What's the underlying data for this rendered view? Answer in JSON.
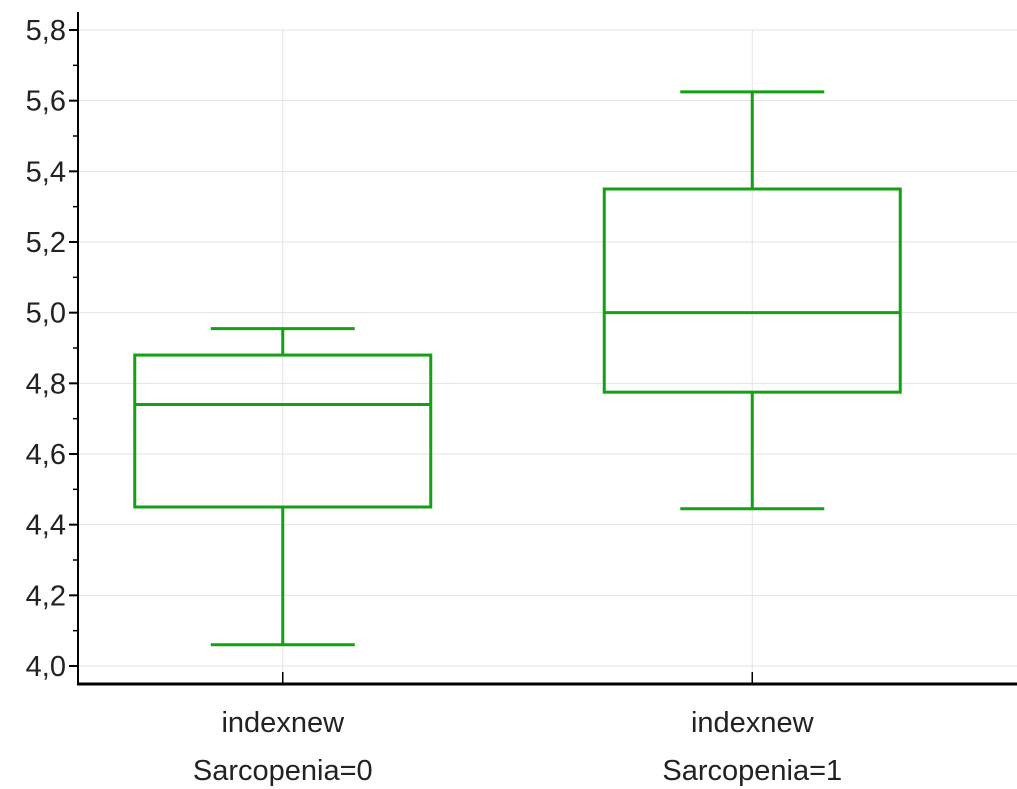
{
  "chart_data": {
    "type": "boxplot",
    "title": "",
    "xlabel": "",
    "ylabel": "",
    "ylim": [
      4.0,
      5.8
    ],
    "yticks": [
      4.0,
      4.2,
      4.4,
      4.6,
      4.8,
      5.0,
      5.2,
      5.4,
      5.6,
      5.8
    ],
    "ytick_labels": [
      "4,0",
      "4,2",
      "4,4",
      "4,6",
      "4,8",
      "5,0",
      "5,2",
      "5,4",
      "5,6",
      "5,8"
    ],
    "minor_ticks_per_interval": 2,
    "grid": true,
    "box_color": "#13a113",
    "categories": [
      {
        "line1": "indexnew",
        "line2": "Sarcopenia=0"
      },
      {
        "line1": "indexnew",
        "line2": "Sarcopenia=1"
      }
    ],
    "boxes": [
      {
        "whisker_low": 4.06,
        "q1": 4.45,
        "median": 4.74,
        "q3": 4.88,
        "whisker_high": 4.955
      },
      {
        "whisker_low": 4.445,
        "q1": 4.775,
        "median": 5.0,
        "q3": 5.35,
        "whisker_high": 5.625
      }
    ]
  }
}
